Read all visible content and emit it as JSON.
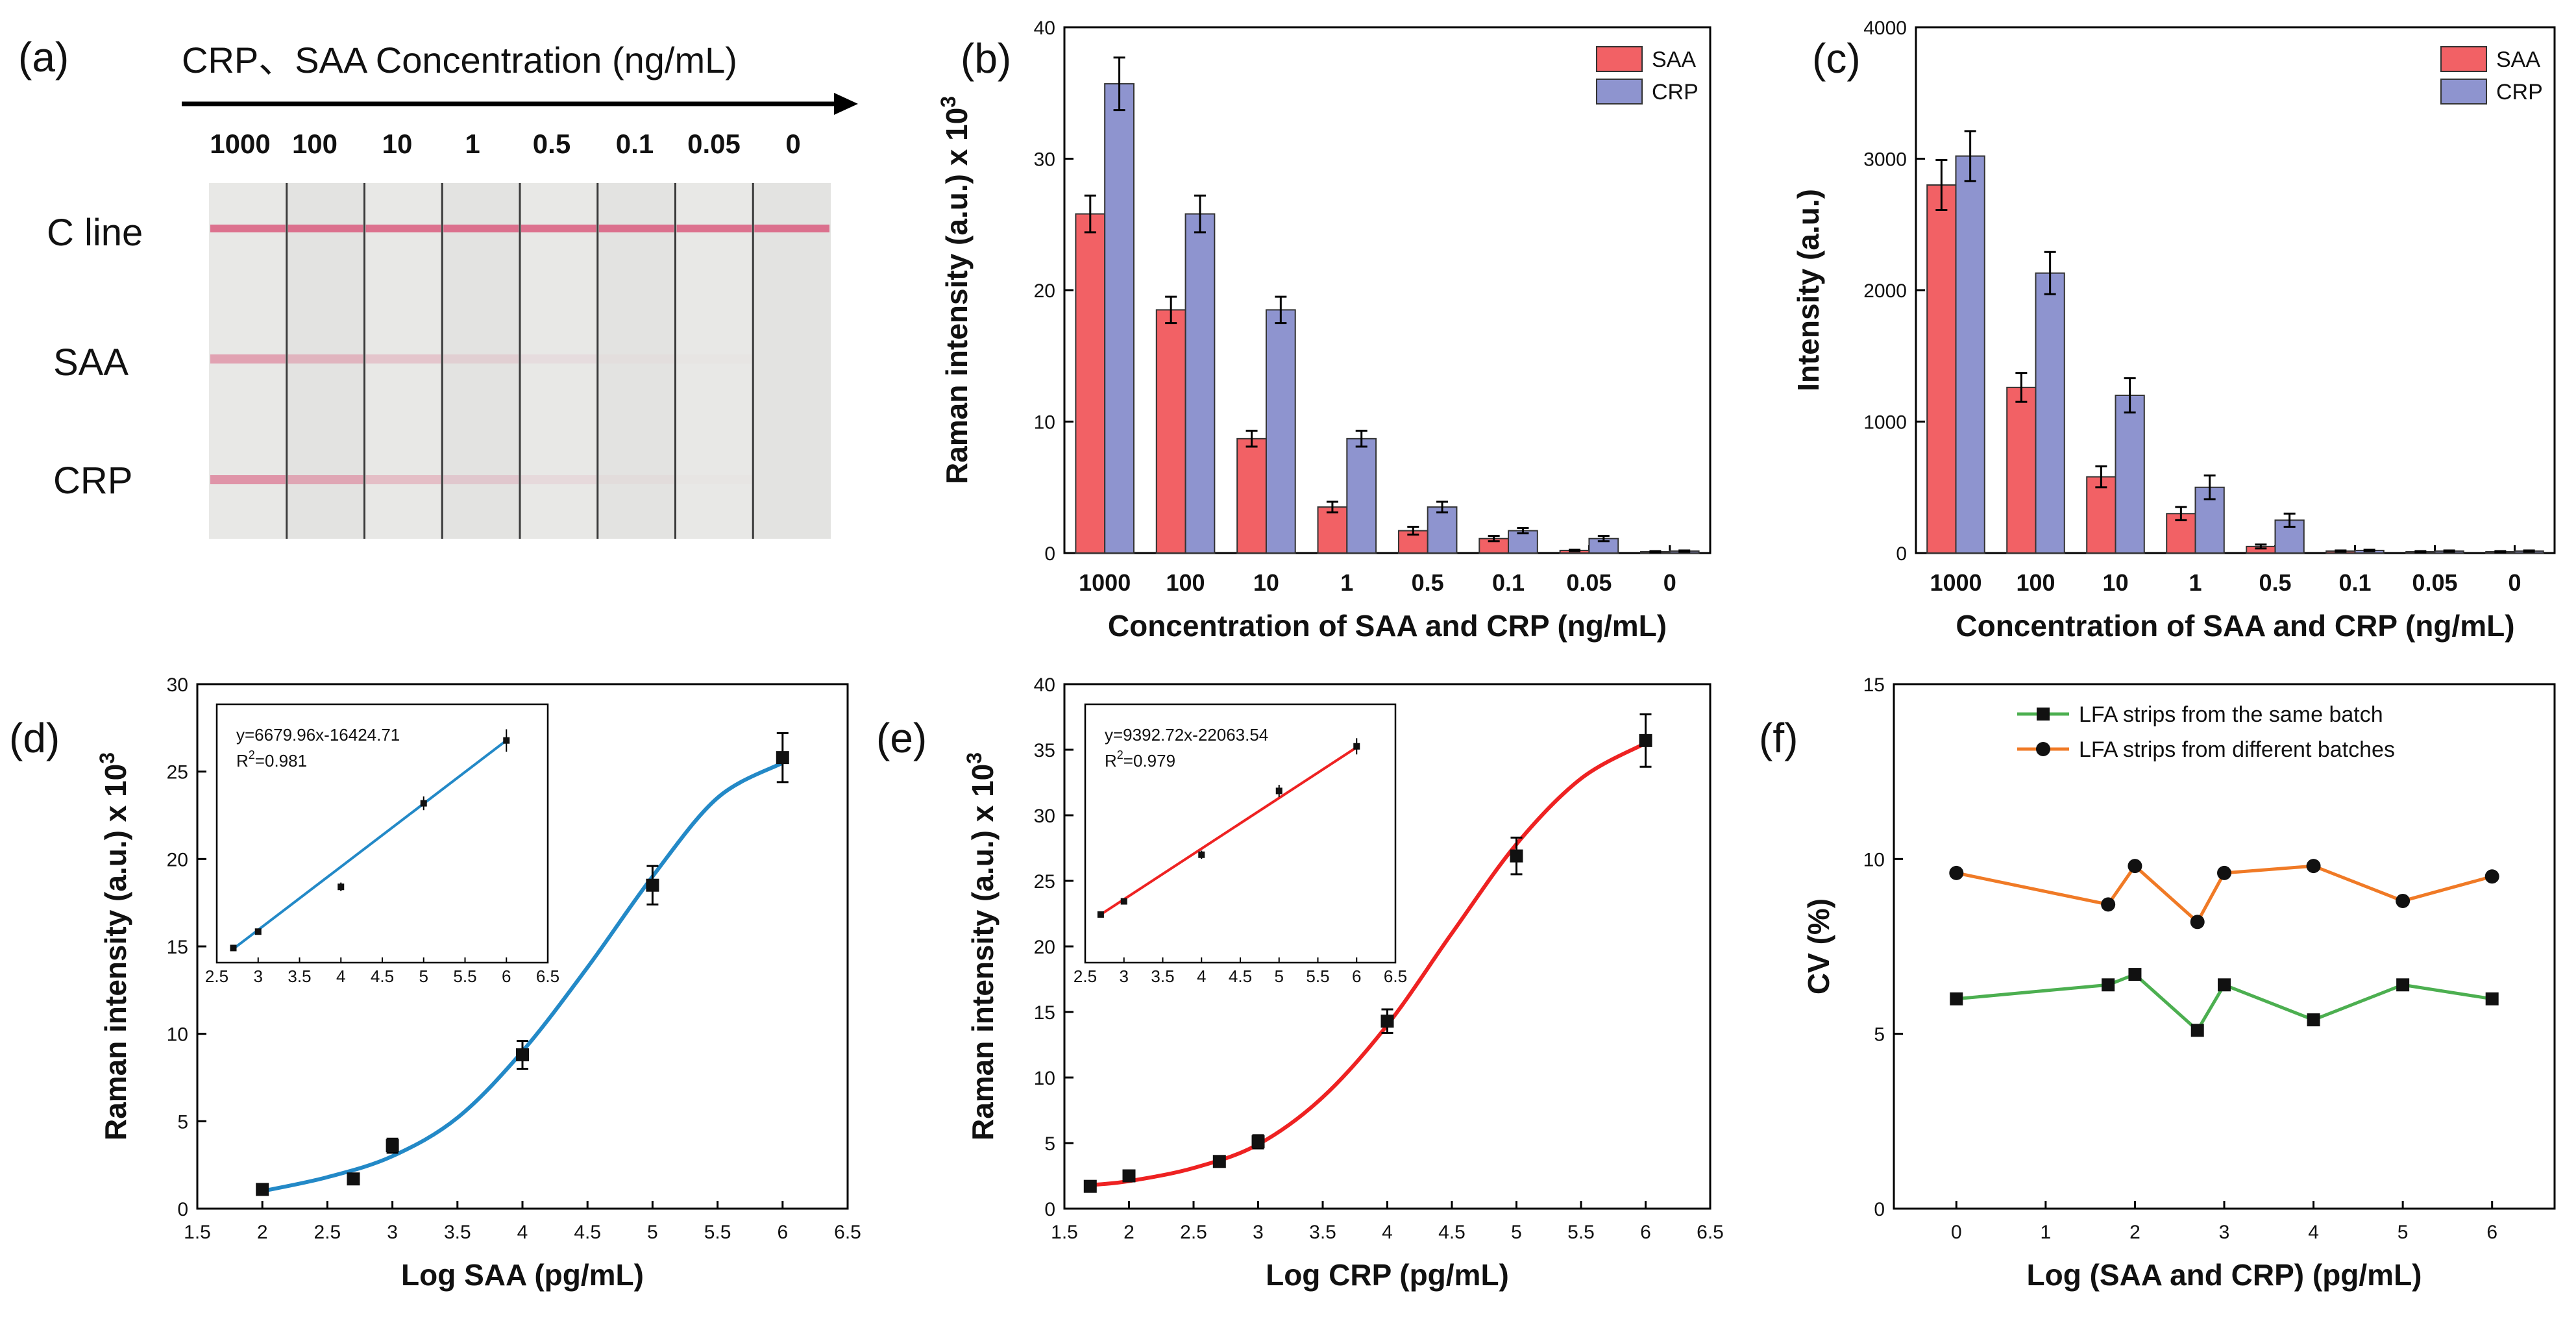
{
  "colors": {
    "saa": "#f26165",
    "crp": "#8e94cf",
    "blue_curve": "#2389c7",
    "red_curve": "#ee2222",
    "green": "#4caf50",
    "orange": "#f07a26",
    "strip_line": "#d95c7e"
  },
  "panel_a": {
    "letter": "(a)",
    "title": "CRP、SAA Concentration (ng/mL)",
    "concentrations": [
      "1000",
      "100",
      "10",
      "1",
      "0.5",
      "0.1",
      "0.05",
      "0"
    ],
    "row_labels": [
      "C line",
      "SAA",
      "CRP"
    ],
    "saa_band_strength": [
      0.5,
      0.35,
      0.25,
      0.15,
      0.08,
      0.04,
      0.02,
      0.0
    ],
    "crp_band_strength": [
      0.6,
      0.45,
      0.3,
      0.2,
      0.1,
      0.05,
      0.02,
      0.0
    ]
  },
  "chart_data": [
    {
      "id": "b",
      "letter": "(b)",
      "type": "bar",
      "categories": [
        "1000",
        "100",
        "10",
        "1",
        "0.5",
        "0.1",
        "0.05",
        "0"
      ],
      "series": [
        {
          "name": "SAA",
          "values": [
            25.8,
            18.5,
            8.7,
            3.5,
            1.7,
            1.1,
            0.2,
            0.1
          ],
          "errors": [
            1.4,
            1.0,
            0.6,
            0.4,
            0.3,
            0.2,
            0.05,
            0.05
          ]
        },
        {
          "name": "CRP",
          "values": [
            35.7,
            25.8,
            18.5,
            8.7,
            3.5,
            1.7,
            1.1,
            0.15
          ],
          "errors": [
            2.0,
            1.4,
            1.0,
            0.6,
            0.4,
            0.2,
            0.2,
            0.05
          ]
        }
      ],
      "xlabel": "Concentration of SAA and CRP (ng/mL)",
      "ylabel": "Raman intensity (a.u.)  x 10",
      "ylabel_sup": "3",
      "ylim": [
        0,
        40
      ],
      "yticks": [
        0,
        10,
        20,
        30,
        40
      ],
      "legend": "top-right"
    },
    {
      "id": "c",
      "letter": "(c)",
      "type": "bar",
      "categories": [
        "1000",
        "100",
        "10",
        "1",
        "0.5",
        "0.1",
        "0.05",
        "0"
      ],
      "series": [
        {
          "name": "SAA",
          "values": [
            2800,
            1260,
            580,
            300,
            50,
            15,
            10,
            10
          ],
          "errors": [
            190,
            110,
            80,
            50,
            15,
            5,
            5,
            5
          ]
        },
        {
          "name": "CRP",
          "values": [
            3020,
            2130,
            1200,
            500,
            250,
            20,
            15,
            15
          ],
          "errors": [
            190,
            160,
            130,
            90,
            50,
            5,
            5,
            5
          ]
        }
      ],
      "xlabel": "Concentration of SAA and CRP (ng/mL)",
      "ylabel": "Intensity (a.u.)",
      "ylim": [
        0,
        4000
      ],
      "yticks": [
        0,
        1000,
        2000,
        3000,
        4000
      ],
      "legend": "top-right"
    },
    {
      "id": "d",
      "letter": "(d)",
      "type": "scatter",
      "x": [
        2.0,
        2.7,
        3.0,
        4.0,
        5.0,
        6.0
      ],
      "y": [
        1.1,
        1.7,
        3.6,
        8.8,
        18.5,
        25.8
      ],
      "errors": [
        0.2,
        0.3,
        0.4,
        0.8,
        1.1,
        1.4
      ],
      "fit_curve": {
        "x": [
          2.0,
          2.5,
          3.0,
          3.5,
          4.0,
          4.5,
          5.0,
          5.5,
          6.0
        ],
        "y": [
          1.0,
          1.8,
          3.0,
          5.2,
          9.0,
          13.8,
          19.0,
          23.5,
          25.5
        ]
      },
      "xlabel": "Log SAA (pg/mL)",
      "ylabel": "Raman intensity (a.u.)  x 10",
      "ylabel_sup": "3",
      "xlim": [
        1.5,
        6.5
      ],
      "xticks": [
        1.5,
        2.0,
        2.5,
        3.0,
        3.5,
        4.0,
        4.5,
        5.0,
        5.5,
        6.0,
        6.5
      ],
      "ylim": [
        0,
        30
      ],
      "yticks": [
        0,
        5,
        10,
        15,
        20,
        25,
        30
      ],
      "inset": {
        "equation": "y=6679.96x-16424.71",
        "r2_prefix": "R",
        "r2_sup": "2",
        "r2_value": "=0.981",
        "x": [
          2.7,
          3.0,
          4.0,
          5.0,
          6.0
        ],
        "y": [
          1.7,
          3.6,
          8.8,
          18.5,
          25.8
        ],
        "errors": [
          0.2,
          0.3,
          0.5,
          0.8,
          1.3
        ],
        "xlim": [
          2.5,
          6.5
        ],
        "xticks": [
          2.5,
          3.0,
          3.5,
          4.0,
          4.5,
          5.0,
          5.5,
          6.0,
          6.5
        ],
        "ylim": [
          0,
          30
        ],
        "fit_line": {
          "x": [
            2.7,
            6.0
          ],
          "y": [
            1.6,
            25.8
          ]
        }
      }
    },
    {
      "id": "e",
      "letter": "(e)",
      "type": "scatter",
      "x": [
        1.7,
        2.0,
        2.7,
        3.0,
        4.0,
        5.0,
        6.0
      ],
      "y": [
        1.7,
        2.5,
        3.6,
        5.1,
        14.3,
        26.9,
        35.7
      ],
      "errors": [
        0.2,
        0.3,
        0.3,
        0.5,
        0.9,
        1.4,
        2.0
      ],
      "fit_curve": {
        "x": [
          1.7,
          2.0,
          2.5,
          3.0,
          3.5,
          4.0,
          4.5,
          5.0,
          5.5,
          6.0
        ],
        "y": [
          1.8,
          2.1,
          3.1,
          4.9,
          8.5,
          14.0,
          21.0,
          27.8,
          32.8,
          35.5
        ]
      },
      "xlabel": "Log CRP (pg/mL)",
      "ylabel": "Raman intensity (a.u.)  x 10",
      "ylabel_sup": "3",
      "xlim": [
        1.5,
        6.5
      ],
      "xticks": [
        1.5,
        2.0,
        2.5,
        3.0,
        3.5,
        4.0,
        4.5,
        5.0,
        5.5,
        6.0,
        6.5
      ],
      "ylim": [
        0,
        40
      ],
      "yticks": [
        0,
        5,
        10,
        15,
        20,
        25,
        30,
        35,
        40
      ],
      "inset": {
        "equation": "y=9392.72x-22063.54",
        "r2_prefix": "R",
        "r2_sup": "2",
        "r2_value": "=0.979",
        "x": [
          2.7,
          3.0,
          4.0,
          5.0,
          6.0
        ],
        "y": [
          2.5,
          5.1,
          14.3,
          26.9,
          35.7
        ],
        "errors": [
          0.3,
          0.4,
          0.8,
          1.2,
          1.6
        ],
        "xlim": [
          2.5,
          6.5
        ],
        "xticks": [
          2.5,
          3.0,
          3.5,
          4.0,
          4.5,
          5.0,
          5.5,
          6.0,
          6.5
        ],
        "ylim": [
          -7,
          44
        ],
        "fit_line": {
          "x": [
            2.7,
            6.0
          ],
          "y": [
            2.5,
            35.5
          ]
        }
      }
    },
    {
      "id": "f",
      "letter": "(f)",
      "type": "line",
      "series": [
        {
          "name": "LFA strips from the same batch",
          "x": [
            0,
            1.7,
            2.0,
            2.7,
            3.0,
            4.0,
            5.0,
            6.0
          ],
          "y": [
            6.0,
            6.4,
            6.7,
            5.1,
            6.4,
            5.4,
            6.4,
            6.0
          ],
          "marker": "square"
        },
        {
          "name": "LFA strips from different batches",
          "x": [
            0,
            1.7,
            2.0,
            2.7,
            3.0,
            4.0,
            5.0,
            6.0
          ],
          "y": [
            9.6,
            8.7,
            9.8,
            8.2,
            9.6,
            9.8,
            8.8,
            9.5
          ],
          "marker": "circle"
        }
      ],
      "xlabel": "Log (SAA and CRP) (pg/mL)",
      "ylabel": "CV (%)",
      "xlim": [
        -0.7,
        6.7
      ],
      "xticks": [
        0,
        1,
        2,
        3,
        4,
        5,
        6
      ],
      "ylim": [
        0,
        15
      ],
      "yticks": [
        0,
        5,
        10,
        15
      ],
      "legend": "top-right"
    }
  ]
}
